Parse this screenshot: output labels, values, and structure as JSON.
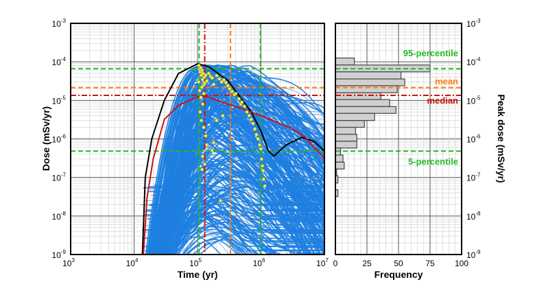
{
  "chart_data": [
    {
      "type": "line",
      "xlabel": "Time (yr)",
      "ylabel": "Dose (mSv/yr)",
      "x_scale": "log",
      "y_scale": "log",
      "xlim": [
        1000,
        10000000
      ],
      "ylim": [
        1e-09,
        0.001
      ],
      "grid": true,
      "x_ticks": [
        {
          "base": "10",
          "exp": "3"
        },
        {
          "base": "10",
          "exp": "4"
        },
        {
          "base": "10",
          "exp": "5"
        },
        {
          "base": "10",
          "exp": "6"
        },
        {
          "base": "10",
          "exp": "7"
        }
      ],
      "y_ticks": [
        {
          "base": "10",
          "exp": "-3"
        },
        {
          "base": "10",
          "exp": "-4"
        },
        {
          "base": "10",
          "exp": "-5"
        },
        {
          "base": "10",
          "exp": "-6"
        },
        {
          "base": "10",
          "exp": "-7"
        },
        {
          "base": "10",
          "exp": "-8"
        },
        {
          "base": "10",
          "exp": "-9"
        }
      ],
      "colors": {
        "ensemble": "#1f7fe0",
        "max_envelope": "#000000",
        "median_curve": "#cc1111",
        "peaks": "#f2ee5a",
        "p95": "#22bb22",
        "mean": "#ff7a10",
        "median": "#cc1111",
        "p5": "#22bb22"
      },
      "series": [
        {
          "role": "max-envelope",
          "x": [
            13500,
            15000,
            19000,
            30000,
            50000,
            100000,
            150000,
            300000,
            700000,
            1000000,
            1300000,
            1600000,
            2500000,
            4400000,
            7000000,
            10000000
          ],
          "y": [
            1e-09,
            1e-07,
            1e-06,
            1e-05,
            5e-05,
            8.9e-05,
            7.5e-05,
            3.3e-05,
            5e-06,
            1.6e-06,
            5e-07,
            3.6e-07,
            7e-07,
            1.1e-06,
            8.5e-07,
            4.8e-07
          ]
        },
        {
          "role": "median-curve",
          "x": [
            14000,
            16000,
            20000,
            30000,
            50000,
            100000,
            130000,
            300000,
            700000,
            1000000,
            3000000,
            5000000,
            10000000
          ],
          "y": [
            1e-09,
            3e-08,
            3e-07,
            3.2e-06,
            7.4e-06,
            1.25e-05,
            1.3e-05,
            8e-06,
            5e-06,
            4e-06,
            1.9e-06,
            1.1e-06,
            3e-07
          ]
        }
      ],
      "peak_points": {
        "x": [
          105000,
          107000,
          110000,
          112000,
          115000,
          118000,
          120000,
          122000,
          125000,
          128000,
          104000,
          108000,
          113000,
          117000,
          121000,
          126000,
          130000,
          135000,
          140000,
          150000,
          160000,
          170000,
          180000,
          200000,
          220000,
          240000,
          260000,
          280000,
          300000,
          320000,
          350000,
          380000,
          400000,
          450000,
          480000,
          500000,
          550000,
          600000,
          650000,
          700000,
          750000,
          800000,
          850000,
          900000,
          950000,
          1000000,
          1020000,
          1050000,
          1080000,
          1100000,
          1150000,
          110000,
          115000,
          125000,
          135000,
          140000,
          170000,
          250000,
          180000,
          120000,
          130000,
          118000,
          200000,
          230000
        ],
        "y": [
          8e-05,
          6.5e-05,
          5.5e-05,
          7e-05,
          4.5e-05,
          6e-05,
          3.5e-05,
          5e-05,
          2.5e-05,
          4e-05,
          3e-05,
          1.8e-05,
          1.2e-05,
          2.2e-05,
          8e-06,
          1.5e-05,
          2.8e-05,
          4.5e-05,
          3.2e-05,
          5e-05,
          4.2e-05,
          3.8e-05,
          2.6e-05,
          4.4e-05,
          3.6e-05,
          3e-05,
          3.4e-05,
          2.9e-05,
          2.4e-05,
          2e-05,
          1.7e-05,
          1.4e-05,
          1.5e-05,
          1.1e-05,
          8e-06,
          9e-06,
          7e-06,
          5e-06,
          4e-06,
          3.2e-06,
          2.5e-06,
          1.8e-06,
          1.3e-06,
          1e-06,
          7e-07,
          5.5e-07,
          3e-07,
          2e-07,
          1.5e-07,
          9e-08,
          6e-08,
          5e-06,
          3e-06,
          2e-06,
          1.2e-06,
          7e-07,
          5e-07,
          4e-06,
          8e-07,
          3.5e-07,
          2.2e-07,
          1.6e-07,
          3e-06,
          2.5e-08
        ]
      },
      "reference_lines": [
        {
          "orientation": "horizontal",
          "value": 6.6e-05,
          "label": "95-percentile",
          "style": "dashed",
          "color": "#22bb22"
        },
        {
          "orientation": "horizontal",
          "value": 2.15e-05,
          "label": "mean",
          "style": "dashed",
          "color": "#ff7a10"
        },
        {
          "orientation": "horizontal",
          "value": 1.35e-05,
          "label": "median",
          "style": "dashdot",
          "color": "#cc1111"
        },
        {
          "orientation": "horizontal",
          "value": 4.8e-07,
          "label": "5-percentile",
          "style": "dashed",
          "color": "#22bb22"
        },
        {
          "orientation": "vertical",
          "value": 106000,
          "style": "dashed",
          "color": "#22bb22"
        },
        {
          "orientation": "vertical",
          "value": 130000,
          "style": "dashdot",
          "color": "#cc1111"
        },
        {
          "orientation": "vertical",
          "value": 330000,
          "style": "dashed",
          "color": "#ff7a10"
        },
        {
          "orientation": "vertical",
          "value": 980000,
          "style": "dashed",
          "color": "#22bb22"
        }
      ]
    },
    {
      "type": "bar",
      "orientation": "horizontal",
      "xlabel": "Frequency",
      "ylabel": "Peak dose (mSv/yr)",
      "xlim": [
        0,
        100
      ],
      "ylim": [
        1e-09,
        0.001
      ],
      "y_scale": "log",
      "grid": true,
      "x_ticks": [
        "0",
        "25",
        "50",
        "75",
        "100"
      ],
      "bar_color": "#d0d0d0",
      "bin_edges": [
        0.000126,
        8.3e-05,
        5.5e-05,
        3.6e-05,
        2.4e-05,
        1.58e-05,
        1.05e-05,
        6.9e-06,
        4.6e-06,
        3e-06,
        2e-06,
        1.32e-06,
        8.7e-07,
        5.8e-07,
        3.8e-07,
        2.5e-07,
        1.66e-07,
        1.1e-07,
        7.2e-08,
        4.8e-08,
        3.2e-08
      ],
      "counts": [
        15,
        75,
        52,
        55,
        49,
        36,
        43,
        48,
        31,
        23,
        16,
        17,
        17,
        4,
        6,
        7,
        1,
        2,
        0,
        2
      ],
      "annotations": [
        "95-percentile",
        "mean",
        "median",
        "5-percentile"
      ]
    }
  ]
}
